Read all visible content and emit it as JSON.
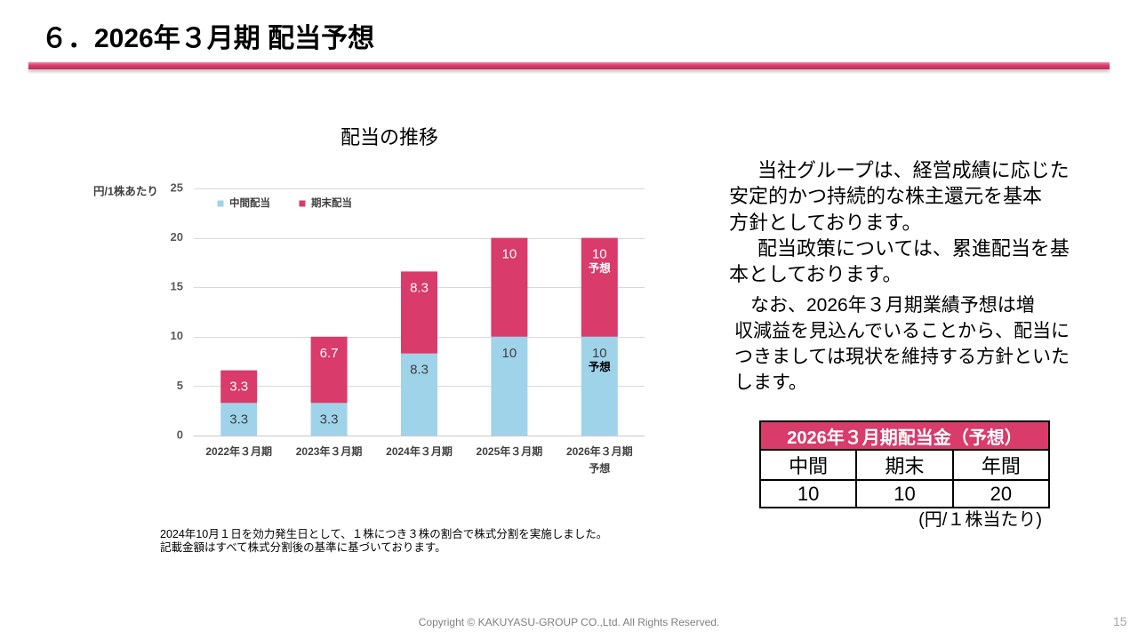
{
  "slide": {
    "title": "６．2026年３月期 配当予想",
    "footer": "Copyright © KAKUYASU-GROUP CO.,Ltd. All Rights Reserved.",
    "page_number": "15",
    "accent_color": "#d93b6b"
  },
  "policy_text": {
    "paragraph1": [
      "当社グループは、経営成績に応じた",
      "安定的かつ持続的な株主還元を基本",
      "方針としております。"
    ],
    "paragraph2": [
      "配当政策については、累進配当を基",
      "本としております。"
    ],
    "paragraph3": [
      "なお、2026年３月期業績予想は増",
      "収減益を見込んでいることから、配当に",
      "つきましては現状を維持する方針といた",
      "します。"
    ]
  },
  "dividend_table": {
    "title": "2026年３月期配当金（予想）",
    "headers": [
      "中間",
      "期末",
      "年間"
    ],
    "values": [
      "10",
      "10",
      "20"
    ],
    "unit": "(円/１株当たり)"
  },
  "notes": [
    "2024年10月１日を効力発生日として、１株につき３株の割合で株式分割を実施しました。",
    "記載金額はすべて株式分割後の基準に基づいております。"
  ],
  "chart_data": {
    "type": "bar",
    "stacked": true,
    "title": "配当の推移",
    "ylabel": "円/1株あたり",
    "categories": [
      "2022年３月期",
      "2023年３月期",
      "2024年３月期",
      "2025年３月期",
      "2026年３月期"
    ],
    "category_notes": [
      "",
      "",
      "",
      "",
      "予想"
    ],
    "series": [
      {
        "name": "中間配当",
        "values": [
          3.3,
          3.3,
          8.3,
          10,
          10
        ],
        "label_notes": [
          "",
          "",
          "",
          "",
          "予想"
        ],
        "color": "#9fd3ea",
        "label_color": "#404040",
        "note_color": "#000000"
      },
      {
        "name": "期末配当",
        "values": [
          3.3,
          6.7,
          8.3,
          10,
          10
        ],
        "label_notes": [
          "",
          "",
          "",
          "",
          "予想"
        ],
        "color": "#d93b6b",
        "label_color": "#ffffff",
        "note_color": "#ffffff"
      }
    ],
    "ylim": [
      0,
      25
    ],
    "yticks": [
      0,
      5,
      10,
      15,
      20,
      25
    ],
    "grid": true,
    "legend": "top-left"
  }
}
